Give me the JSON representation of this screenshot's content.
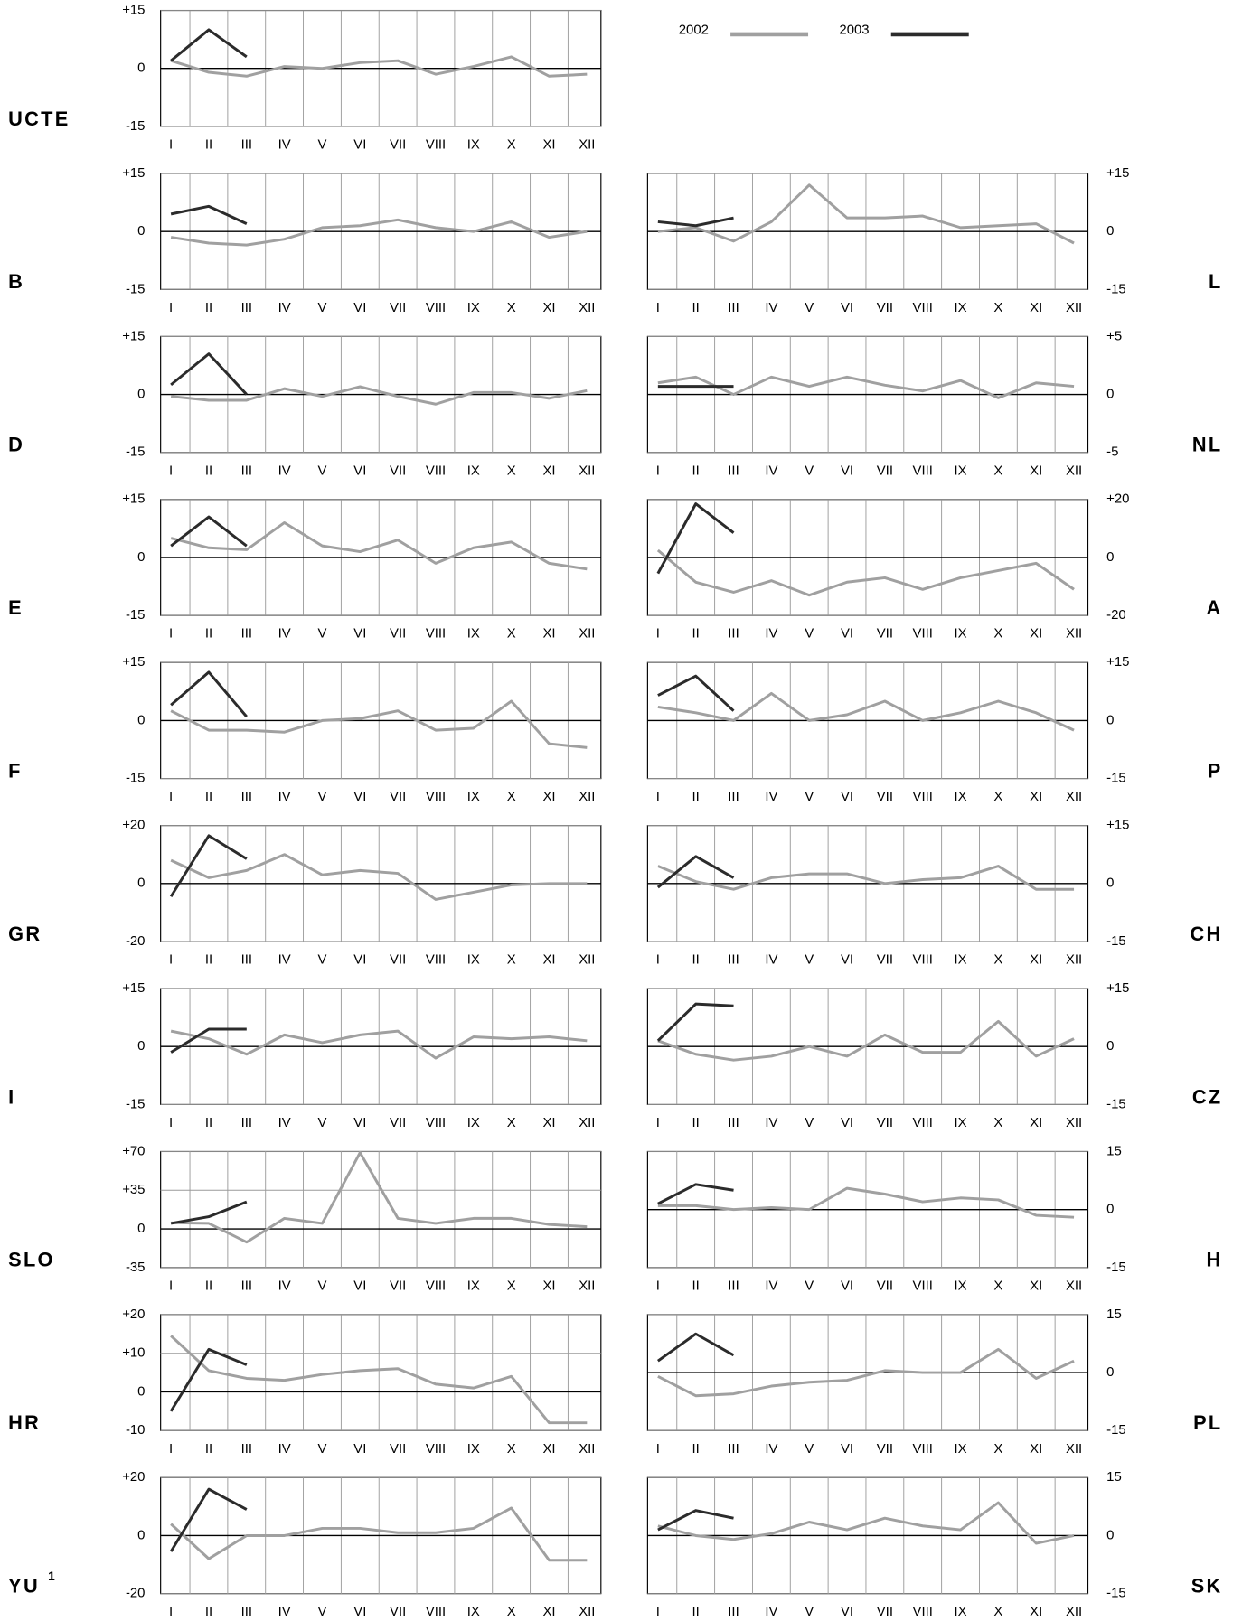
{
  "legend": [
    {
      "name": "2002",
      "color": "#a0a0a0"
    },
    {
      "name": "2003",
      "color": "#2b2b2b"
    }
  ],
  "chart_data": [
    {
      "type": "line",
      "label": "UCTE",
      "categories": [
        "I",
        "II",
        "III",
        "IV",
        "V",
        "VI",
        "VII",
        "VIII",
        "IX",
        "X",
        "XI",
        "XII"
      ],
      "ylim": [
        -15,
        15
      ],
      "yticks": [
        {
          "value": 15,
          "label": "+15"
        },
        0,
        -15
      ],
      "series": [
        {
          "values": [
            2,
            -1,
            -2,
            0.5,
            0,
            1.5,
            2,
            -1.5,
            0.5,
            3,
            -2,
            -1.5
          ]
        },
        {
          "values": [
            2,
            10,
            3,
            null,
            null,
            null,
            null,
            null,
            null,
            null,
            null,
            null
          ]
        }
      ]
    },
    {
      "type": "line",
      "label": "B",
      "categories": [
        "I",
        "II",
        "III",
        "IV",
        "V",
        "VI",
        "VII",
        "VIII",
        "IX",
        "X",
        "XI",
        "XII"
      ],
      "ylim": [
        -15,
        15
      ],
      "yticks": [
        {
          "value": 15,
          "label": "+15"
        },
        0,
        -15
      ],
      "series": [
        {
          "values": [
            -1.5,
            -3,
            -3.5,
            -2,
            1,
            1.5,
            3,
            1,
            0,
            2.5,
            -1.5,
            0
          ]
        },
        {
          "values": [
            4.5,
            6.5,
            2,
            null,
            null,
            null,
            null,
            null,
            null,
            null,
            null,
            null
          ]
        }
      ]
    },
    {
      "type": "line",
      "label": "L",
      "categories": [
        "I",
        "II",
        "III",
        "IV",
        "V",
        "VI",
        "VII",
        "VIII",
        "IX",
        "X",
        "XI",
        "XII"
      ],
      "ylim": [
        -15,
        15
      ],
      "yticks": [
        {
          "value": 15,
          "label": "+15"
        },
        0,
        -15
      ],
      "series": [
        {
          "values": [
            0,
            1,
            -2.5,
            2.5,
            12,
            3.5,
            3.5,
            4,
            1,
            1.5,
            2,
            -3
          ]
        },
        {
          "values": [
            2.5,
            1.5,
            3.5,
            null,
            null,
            null,
            null,
            null,
            null,
            null,
            null,
            null
          ]
        }
      ]
    },
    {
      "type": "line",
      "label": "D",
      "categories": [
        "I",
        "II",
        "III",
        "IV",
        "V",
        "VI",
        "VII",
        "VIII",
        "IX",
        "X",
        "XI",
        "XII"
      ],
      "ylim": [
        -15,
        15
      ],
      "yticks": [
        {
          "value": 15,
          "label": "+15"
        },
        0,
        -15
      ],
      "series": [
        {
          "values": [
            -0.5,
            -1.5,
            -1.5,
            1.5,
            -0.5,
            2,
            -0.5,
            -2.5,
            0.5,
            0.5,
            -1,
            1
          ]
        },
        {
          "values": [
            2.5,
            10.5,
            0,
            null,
            null,
            null,
            null,
            null,
            null,
            null,
            null,
            null
          ]
        }
      ]
    },
    {
      "type": "line",
      "label": "NL",
      "categories": [
        "I",
        "II",
        "III",
        "IV",
        "V",
        "VI",
        "VII",
        "VIII",
        "IX",
        "X",
        "XI",
        "XII"
      ],
      "ylim": [
        -5,
        5
      ],
      "yticks": [
        {
          "value": 5,
          "label": "+5"
        },
        0,
        -5
      ],
      "series": [
        {
          "values": [
            1,
            1.5,
            0,
            1.5,
            0.7,
            1.5,
            0.8,
            0.3,
            1.2,
            -0.3,
            1,
            0.7
          ]
        },
        {
          "values": [
            0.7,
            0.7,
            0.7,
            null,
            null,
            null,
            null,
            null,
            null,
            null,
            null,
            null
          ]
        }
      ]
    },
    {
      "type": "line",
      "label": "E",
      "categories": [
        "I",
        "II",
        "III",
        "IV",
        "V",
        "VI",
        "VII",
        "VIII",
        "IX",
        "X",
        "XI",
        "XII"
      ],
      "ylim": [
        -15,
        15
      ],
      "yticks": [
        {
          "value": 15,
          "label": "+15"
        },
        0,
        -15
      ],
      "series": [
        {
          "values": [
            5,
            2.5,
            2,
            9,
            3,
            1.5,
            4.5,
            -1.5,
            2.5,
            4,
            -1.5,
            -3
          ]
        },
        {
          "values": [
            3,
            10.5,
            3,
            null,
            null,
            null,
            null,
            null,
            null,
            null,
            null,
            null
          ]
        }
      ]
    },
    {
      "type": "line",
      "label": "A",
      "categories": [
        "I",
        "II",
        "III",
        "IV",
        "V",
        "VI",
        "VII",
        "VIII",
        "IX",
        "X",
        "XI",
        "XII"
      ],
      "ylim": [
        -20,
        20
      ],
      "yticks": [
        {
          "value": 20,
          "label": "+20"
        },
        0,
        -20
      ],
      "series": [
        {
          "values": [
            2.5,
            -8.5,
            -12,
            -8,
            -13,
            -8.5,
            -7,
            -11,
            -7,
            -4.5,
            -2,
            -11
          ]
        },
        {
          "values": [
            -5.5,
            18.5,
            8.5,
            null,
            null,
            null,
            null,
            null,
            null,
            null,
            null,
            null
          ]
        }
      ]
    },
    {
      "type": "line",
      "label": "F",
      "categories": [
        "I",
        "II",
        "III",
        "IV",
        "V",
        "VI",
        "VII",
        "VIII",
        "IX",
        "X",
        "XI",
        "XII"
      ],
      "ylim": [
        -15,
        15
      ],
      "yticks": [
        {
          "value": 15,
          "label": "+15"
        },
        0,
        -15
      ],
      "series": [
        {
          "values": [
            2.5,
            -2.5,
            -2.5,
            -3,
            0,
            0.5,
            2.5,
            -2.5,
            -2,
            5,
            -6,
            -7
          ]
        },
        {
          "values": [
            4,
            12.5,
            1,
            null,
            null,
            null,
            null,
            null,
            null,
            null,
            null,
            null
          ]
        }
      ]
    },
    {
      "type": "line",
      "label": "P",
      "categories": [
        "I",
        "II",
        "III",
        "IV",
        "V",
        "VI",
        "VII",
        "VIII",
        "IX",
        "X",
        "XI",
        "XII"
      ],
      "ylim": [
        -15,
        15
      ],
      "yticks": [
        {
          "value": 15,
          "label": "+15"
        },
        0,
        -15
      ],
      "series": [
        {
          "values": [
            3.5,
            2,
            0,
            7,
            0,
            1.5,
            5,
            0,
            2,
            5,
            2,
            -2.5
          ]
        },
        {
          "values": [
            6.5,
            11.5,
            2.5,
            null,
            null,
            null,
            null,
            null,
            null,
            null,
            null,
            null
          ]
        }
      ]
    },
    {
      "type": "line",
      "label": "GR",
      "categories": [
        "I",
        "II",
        "III",
        "IV",
        "V",
        "VI",
        "VII",
        "VIII",
        "IX",
        "X",
        "XI",
        "XII"
      ],
      "ylim": [
        -20,
        20
      ],
      "yticks": [
        {
          "value": 20,
          "label": "+20"
        },
        0,
        -20
      ],
      "series": [
        {
          "values": [
            8,
            2,
            4.5,
            10,
            3,
            4.5,
            3.5,
            -5.5,
            -3,
            -0.5,
            0,
            0
          ]
        },
        {
          "values": [
            -4.5,
            16.5,
            8.5,
            null,
            null,
            null,
            null,
            null,
            null,
            null,
            null,
            null
          ]
        }
      ]
    },
    {
      "type": "line",
      "label": "CH",
      "categories": [
        "I",
        "II",
        "III",
        "IV",
        "V",
        "VI",
        "VII",
        "VIII",
        "IX",
        "X",
        "XI",
        "XII"
      ],
      "ylim": [
        -15,
        15
      ],
      "yticks": [
        {
          "value": 15,
          "label": "+15"
        },
        0,
        -15
      ],
      "series": [
        {
          "values": [
            4.5,
            0.5,
            -1.5,
            1.5,
            2.5,
            2.5,
            0,
            1,
            1.5,
            4.5,
            -1.5,
            -1.5
          ]
        },
        {
          "values": [
            -1,
            7,
            1.5,
            null,
            null,
            null,
            null,
            null,
            null,
            null,
            null,
            null
          ]
        }
      ]
    },
    {
      "type": "line",
      "label": "I",
      "categories": [
        "I",
        "II",
        "III",
        "IV",
        "V",
        "VI",
        "VII",
        "VIII",
        "IX",
        "X",
        "XI",
        "XII"
      ],
      "ylim": [
        -15,
        15
      ],
      "yticks": [
        {
          "value": 15,
          "label": "+15"
        },
        0,
        -15
      ],
      "series": [
        {
          "values": [
            4,
            2,
            -2,
            3,
            1,
            3,
            4,
            -3,
            2.5,
            2,
            2.5,
            1.5
          ]
        },
        {
          "values": [
            -1.5,
            4.5,
            4.5,
            null,
            null,
            null,
            null,
            null,
            null,
            null,
            null,
            null
          ]
        }
      ]
    },
    {
      "type": "line",
      "label": "CZ",
      "categories": [
        "I",
        "II",
        "III",
        "IV",
        "V",
        "VI",
        "VII",
        "VIII",
        "IX",
        "X",
        "XI",
        "XII"
      ],
      "ylim": [
        -15,
        15
      ],
      "yticks": [
        {
          "value": 15,
          "label": "+15"
        },
        0,
        -15
      ],
      "series": [
        {
          "values": [
            1.5,
            -2,
            -3.5,
            -2.5,
            0,
            -2.5,
            3,
            -1.5,
            -1.5,
            6.5,
            -2.5,
            2
          ]
        },
        {
          "values": [
            1.5,
            11,
            10.5,
            null,
            null,
            null,
            null,
            null,
            null,
            null,
            null,
            null
          ]
        }
      ]
    },
    {
      "type": "line",
      "label": "SLO",
      "categories": [
        "I",
        "II",
        "III",
        "IV",
        "V",
        "VI",
        "VII",
        "VIII",
        "IX",
        "X",
        "XI",
        "XII"
      ],
      "ylim": [
        -35,
        70
      ],
      "yticks": [
        {
          "value": 70,
          "label": "+70"
        },
        {
          "value": 35,
          "label": "+35"
        },
        0,
        -35
      ],
      "series": [
        {
          "values": [
            5.5,
            5,
            -12,
            9.5,
            5,
            69,
            9.5,
            5,
            9.5,
            9.5,
            4,
            2
          ]
        },
        {
          "values": [
            5,
            11,
            24.5,
            null,
            null,
            null,
            null,
            null,
            null,
            null,
            null,
            null
          ]
        }
      ]
    },
    {
      "type": "line",
      "label": "H",
      "categories": [
        "I",
        "II",
        "III",
        "IV",
        "V",
        "VI",
        "VII",
        "VIII",
        "IX",
        "X",
        "XI",
        "XII"
      ],
      "ylim": [
        -15,
        15
      ],
      "yticks": [
        15,
        0,
        -15
      ],
      "series": [
        {
          "values": [
            1,
            1,
            0,
            0.5,
            0,
            5.5,
            4,
            2,
            3,
            2.5,
            -1.5,
            -2
          ]
        },
        {
          "values": [
            1.5,
            6.5,
            5,
            null,
            null,
            null,
            null,
            null,
            null,
            null,
            null,
            null
          ]
        }
      ]
    },
    {
      "type": "line",
      "label": "HR",
      "categories": [
        "I",
        "II",
        "III",
        "IV",
        "V",
        "VI",
        "VII",
        "VIII",
        "IX",
        "X",
        "XI",
        "XII"
      ],
      "ylim": [
        -10,
        20
      ],
      "yticks": [
        {
          "value": 20,
          "label": "+20"
        },
        {
          "value": 10,
          "label": "+10"
        },
        0,
        -10
      ],
      "series": [
        {
          "values": [
            14.5,
            5.5,
            3.5,
            3,
            4.5,
            5.5,
            6,
            2,
            1,
            4,
            -8,
            -8
          ]
        },
        {
          "values": [
            -5,
            11,
            7,
            null,
            null,
            null,
            null,
            null,
            null,
            null,
            null,
            null
          ]
        }
      ]
    },
    {
      "type": "line",
      "label": "PL",
      "categories": [
        "I",
        "II",
        "III",
        "IV",
        "V",
        "VI",
        "VII",
        "VIII",
        "IX",
        "X",
        "XI",
        "XII"
      ],
      "ylim": [
        -15,
        15
      ],
      "yticks": [
        15,
        0,
        -15
      ],
      "series": [
        {
          "values": [
            -1,
            -6,
            -5.5,
            -3.5,
            -2.5,
            -2,
            0.5,
            0,
            0,
            6,
            -1.5,
            3
          ]
        },
        {
          "values": [
            3,
            10,
            4.5,
            null,
            null,
            null,
            null,
            null,
            null,
            null,
            null,
            null
          ]
        }
      ]
    },
    {
      "type": "line",
      "label": "YU",
      "footnote": "1",
      "categories": [
        "I",
        "II",
        "III",
        "IV",
        "V",
        "VI",
        "VII",
        "VIII",
        "IX",
        "X",
        "XI",
        "XII"
      ],
      "ylim": [
        -20,
        20
      ],
      "yticks": [
        {
          "value": 20,
          "label": "+20"
        },
        0,
        -20
      ],
      "series": [
        {
          "values": [
            4,
            -8,
            0,
            0,
            2.5,
            2.5,
            1,
            1,
            2.5,
            9.5,
            -8.5,
            -8.5
          ]
        },
        {
          "values": [
            -5.5,
            16,
            9,
            null,
            null,
            null,
            null,
            null,
            null,
            null,
            null,
            null
          ]
        }
      ]
    },
    {
      "type": "line",
      "label": "SK",
      "categories": [
        "I",
        "II",
        "III",
        "IV",
        "V",
        "VI",
        "VII",
        "VIII",
        "IX",
        "X",
        "XI",
        "XII"
      ],
      "ylim": [
        -15,
        15
      ],
      "yticks": [
        15,
        0,
        -15
      ],
      "series": [
        {
          "values": [
            2.5,
            0,
            -1,
            0.5,
            3.5,
            1.5,
            4.5,
            2.5,
            1.5,
            8.5,
            -2,
            0
          ]
        },
        {
          "values": [
            1.5,
            6.5,
            4.5,
            null,
            null,
            null,
            null,
            null,
            null,
            null,
            null,
            null
          ]
        }
      ]
    }
  ]
}
